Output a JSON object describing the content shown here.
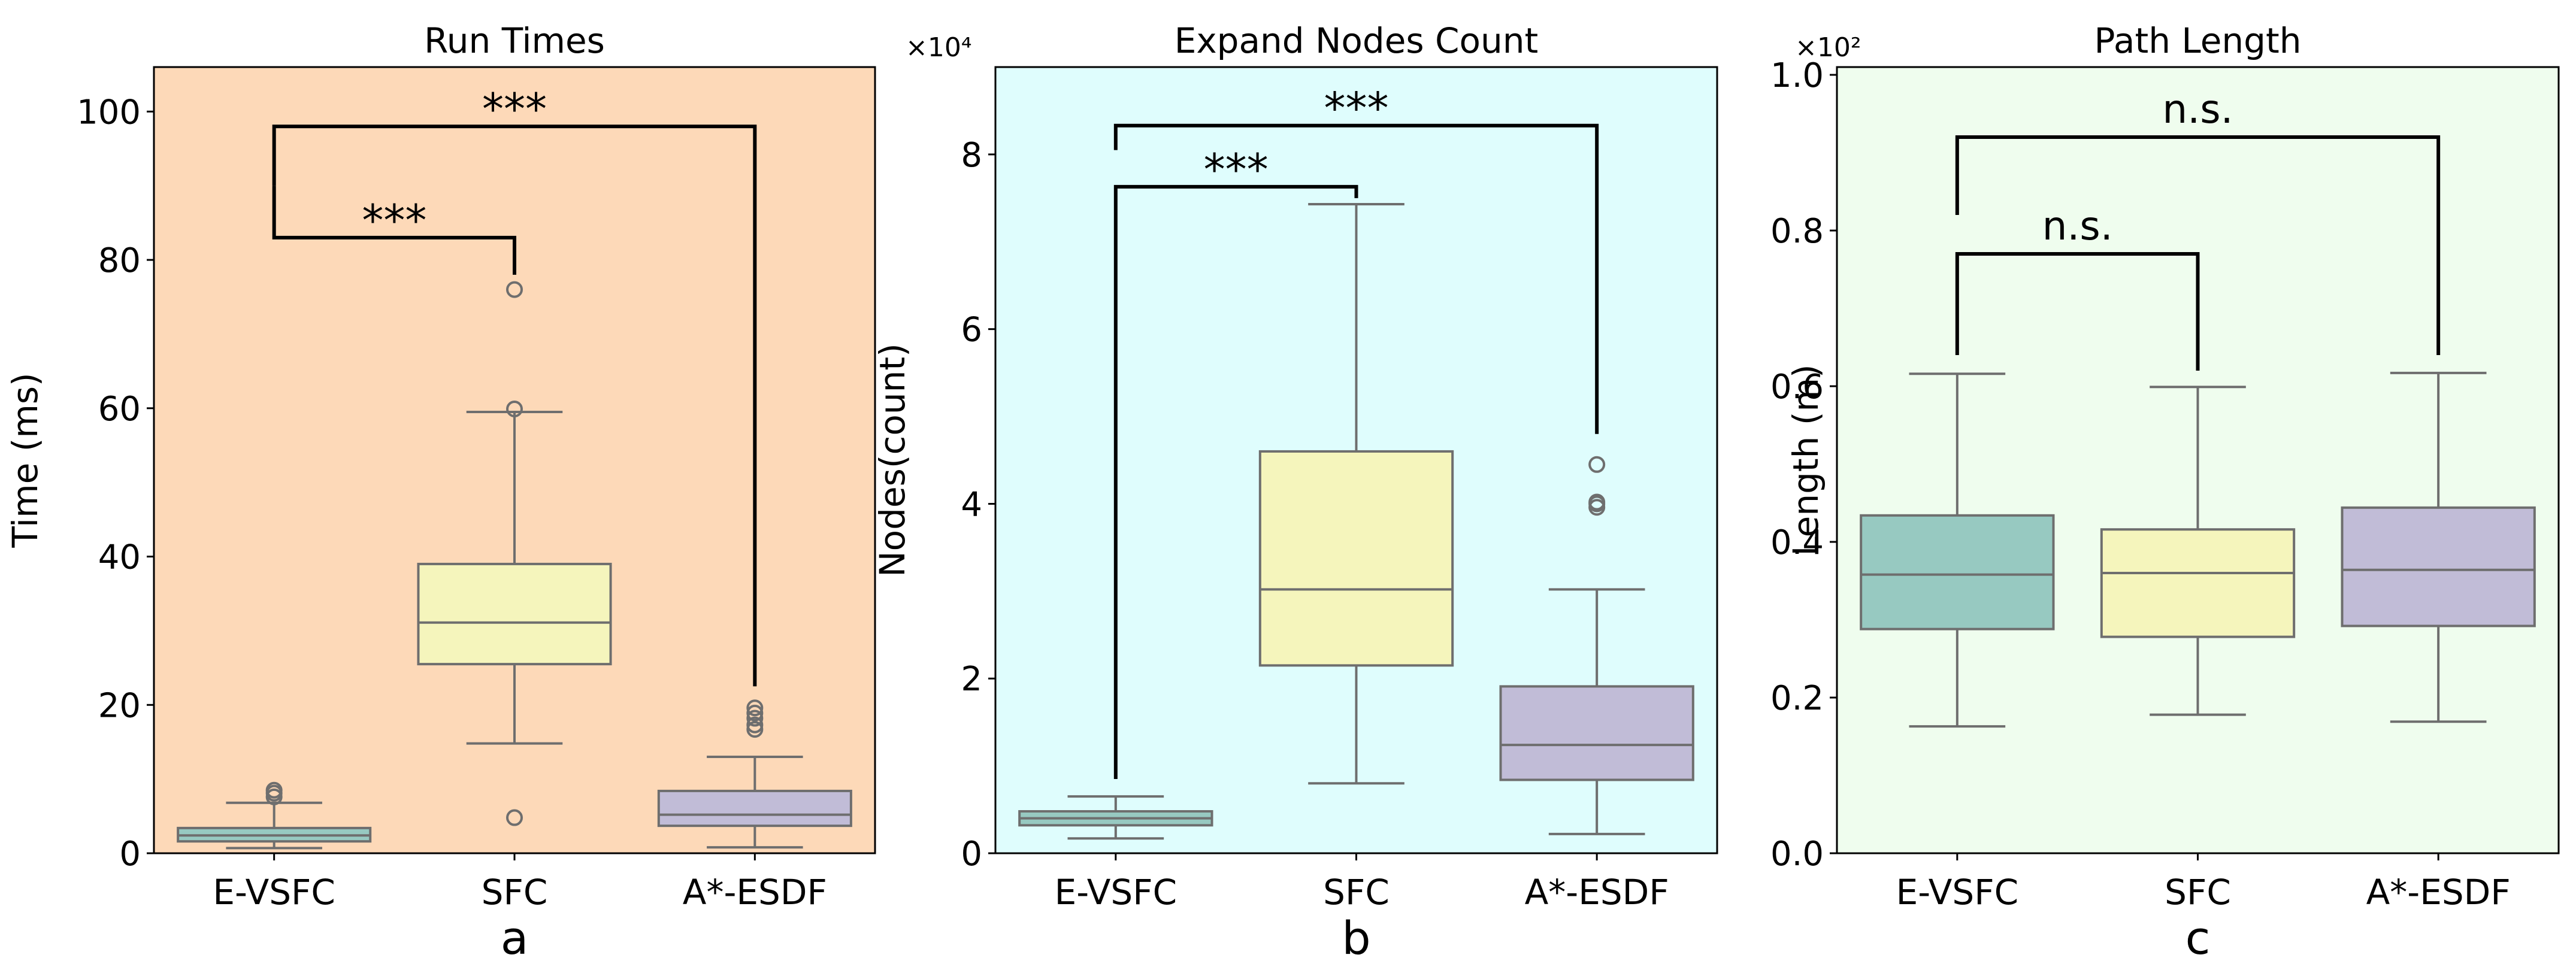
{
  "figure": {
    "background": "#ffffff"
  },
  "chart_data": [
    {
      "type": "box",
      "panel_label": "a",
      "title": "Run Times",
      "xlabel": "",
      "ylabel": "Time (ms)",
      "exponent": "",
      "categories": [
        "E-VSFC",
        "SFC",
        "A*-ESDF"
      ],
      "ylim": [
        0,
        106
      ],
      "yticks": [
        0,
        20,
        40,
        60,
        80,
        100
      ],
      "ytick_labels": [
        "0",
        "20",
        "40",
        "60",
        "80",
        "100"
      ],
      "background": "#fdd9b8",
      "box_colors": [
        "#97c9c1",
        "#f5f5bc",
        "#c1bcd7"
      ],
      "boxes": [
        {
          "category": "E-VSFC",
          "whisker_low": 0.7,
          "q1": 1.6,
          "median": 2.4,
          "q3": 3.4,
          "whisker_high": 6.8,
          "outliers": [
            7.6,
            8.1,
            8.5
          ]
        },
        {
          "category": "SFC",
          "whisker_low": 14.8,
          "q1": 25.5,
          "median": 31.1,
          "q3": 39.0,
          "whisker_high": 59.5,
          "outliers": [
            4.8,
            59.9,
            76.0
          ]
        },
        {
          "category": "A*-ESDF",
          "whisker_low": 0.8,
          "q1": 3.7,
          "median": 5.2,
          "q3": 8.4,
          "whisker_high": 13.0,
          "outliers": [
            16.7,
            17.3,
            18.2,
            18.9,
            19.6
          ]
        }
      ],
      "significance": [
        {
          "from": "E-VSFC",
          "to": "SFC",
          "label": "***",
          "bar_y": 83,
          "left_y": 90,
          "right_y": 78
        },
        {
          "from": "E-VSFC",
          "to": "A*-ESDF",
          "label": "***",
          "bar_y": 98,
          "left_y": 90,
          "right_y": 22.5
        }
      ]
    },
    {
      "type": "box",
      "panel_label": "b",
      "title": "Expand Nodes Count",
      "xlabel": "",
      "ylabel": "Nodes(count)",
      "exponent": "×10⁴",
      "categories": [
        "E-VSFC",
        "SFC",
        "A*-ESDF"
      ],
      "ylim": [
        0,
        9
      ],
      "yticks": [
        0,
        2,
        4,
        6,
        8
      ],
      "ytick_labels": [
        "0",
        "2",
        "4",
        "6",
        "8"
      ],
      "background": "#dffdfd",
      "box_colors": [
        "#97c9c1",
        "#f5f5bc",
        "#c1bcd7"
      ],
      "boxes": [
        {
          "category": "E-VSFC",
          "whisker_low": 0.17,
          "q1": 0.32,
          "median": 0.4,
          "q3": 0.48,
          "whisker_high": 0.65,
          "outliers": []
        },
        {
          "category": "SFC",
          "whisker_low": 0.8,
          "q1": 2.15,
          "median": 3.02,
          "q3": 4.6,
          "whisker_high": 7.43,
          "outliers": []
        },
        {
          "category": "A*-ESDF",
          "whisker_low": 0.22,
          "q1": 0.84,
          "median": 1.24,
          "q3": 1.91,
          "whisker_high": 3.02,
          "outliers": [
            3.96,
            4.0,
            4.02,
            4.45
          ]
        }
      ],
      "significance": [
        {
          "from": "E-VSFC",
          "to": "SFC",
          "label": "***",
          "bar_y": 7.63,
          "left_y": 0.85,
          "right_y": 7.5
        },
        {
          "from": "E-VSFC",
          "to": "A*-ESDF",
          "label": "***",
          "bar_y": 8.33,
          "left_y": 8.05,
          "right_y": 4.8
        }
      ]
    },
    {
      "type": "box",
      "panel_label": "c",
      "title": "Path Length",
      "xlabel": "",
      "ylabel": "Length (m)",
      "exponent": "×10²",
      "categories": [
        "E-VSFC",
        "SFC",
        "A*-ESDF"
      ],
      "ylim": [
        0,
        1.01
      ],
      "yticks": [
        0.0,
        0.2,
        0.4,
        0.6,
        0.8,
        1.0
      ],
      "ytick_labels": [
        "0.0",
        "0.2",
        "0.4",
        "0.6",
        "0.8",
        "1.0"
      ],
      "background": "#effdee",
      "box_colors": [
        "#97c9c1",
        "#f5f5bc",
        "#c1bcd7"
      ],
      "boxes": [
        {
          "category": "E-VSFC",
          "whisker_low": 0.163,
          "q1": 0.288,
          "median": 0.358,
          "q3": 0.434,
          "whisker_high": 0.616,
          "outliers": []
        },
        {
          "category": "SFC",
          "whisker_low": 0.178,
          "q1": 0.278,
          "median": 0.36,
          "q3": 0.416,
          "whisker_high": 0.599,
          "outliers": []
        },
        {
          "category": "A*-ESDF",
          "whisker_low": 0.169,
          "q1": 0.292,
          "median": 0.364,
          "q3": 0.444,
          "whisker_high": 0.617,
          "outliers": []
        }
      ],
      "significance": [
        {
          "from": "E-VSFC",
          "to": "SFC",
          "label": "n.s.",
          "bar_y": 0.77,
          "left_y": 0.64,
          "right_y": 0.62
        },
        {
          "from": "E-VSFC",
          "to": "A*-ESDF",
          "label": "n.s.",
          "bar_y": 0.92,
          "left_y": 0.82,
          "right_y": 0.64
        }
      ]
    }
  ]
}
